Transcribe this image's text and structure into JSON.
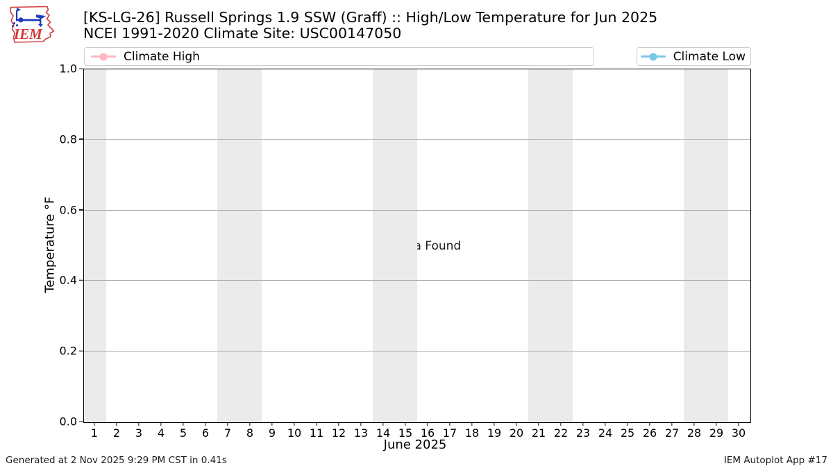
{
  "logo": {
    "text": "IEM"
  },
  "footer": {
    "generated": "Generated at 2 Nov 2025 9:29 PM CST in 0.41s",
    "app": "IEM Autoplot App #17"
  },
  "chart_data": {
    "type": "line",
    "title": "[KS-LG-26] Russell Springs 1.9 SSW (Graff) :: High/Low Temperature for Jun 2025",
    "subtitle": "NCEI 1991-2020 Climate Site: USC00147050",
    "xlabel": "June 2025",
    "ylabel": "Temperature °F",
    "no_data_text": "No Data Found",
    "xlim": [
      0.5,
      30.5
    ],
    "ylim": [
      0.0,
      1.0
    ],
    "x_ticks": [
      1,
      2,
      3,
      4,
      5,
      6,
      7,
      8,
      9,
      10,
      11,
      12,
      13,
      14,
      15,
      16,
      17,
      18,
      19,
      20,
      21,
      22,
      23,
      24,
      25,
      26,
      27,
      28,
      29,
      30
    ],
    "y_ticks": [
      "0.0",
      "0.2",
      "0.4",
      "0.6",
      "0.8",
      "1.0"
    ],
    "grid_y": [
      0.2,
      0.4,
      0.6,
      0.8
    ],
    "grid": "horizontal",
    "legend_position": "top",
    "series": [
      {
        "name": "Climate High",
        "color": "#ffb6c1",
        "values": []
      },
      {
        "name": "Climate Low",
        "color": "#7cc7e8",
        "values": []
      }
    ],
    "weekend_bands": [
      [
        0.5,
        1.5
      ],
      [
        6.5,
        8.5
      ],
      [
        13.5,
        15.5
      ],
      [
        20.5,
        22.5
      ],
      [
        27.5,
        29.5
      ]
    ],
    "colors": {
      "band": "#ebebeb",
      "grid": "#b0b0b0",
      "spine": "#000000"
    }
  }
}
